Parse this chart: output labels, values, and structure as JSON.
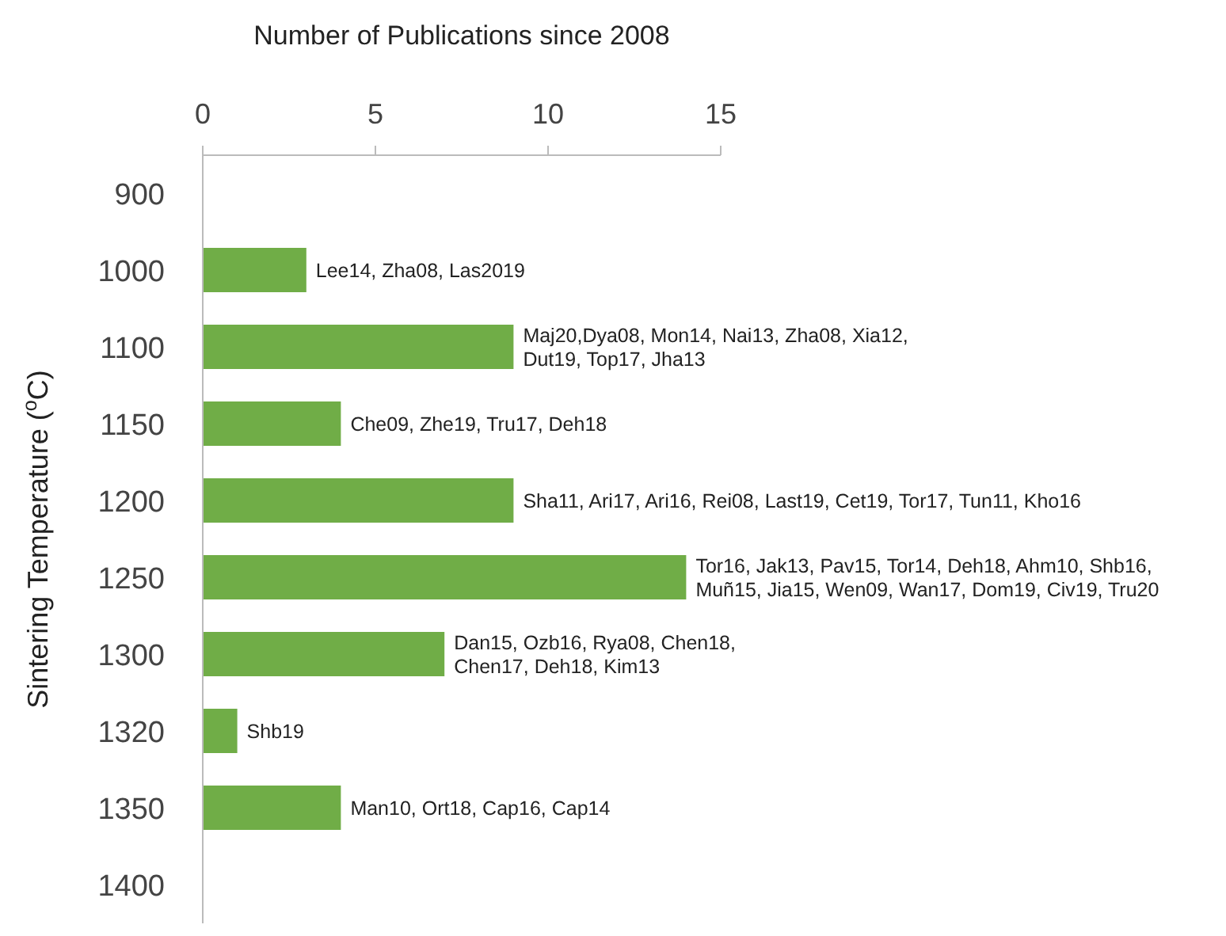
{
  "chart_data": {
    "type": "bar",
    "orientation": "horizontal",
    "xlabel": "Number of Publications since 2008",
    "ylabel": "Sintering Temperature ($^{o}$C)",
    "categories": [
      "900",
      "1000",
      "1100",
      "1150",
      "1200",
      "1250",
      "1300",
      "1320",
      "1350",
      "1400"
    ],
    "values": [
      0,
      3,
      9,
      4,
      9,
      14,
      7,
      1,
      4,
      0
    ],
    "color": "#70ad47",
    "xlim": [
      0,
      15
    ],
    "xticks": [
      0,
      5,
      10,
      15
    ],
    "annotations": [
      {
        "text": "Lee14, Zha08, Las2019",
        "x": 3,
        "y": "1000"
      },
      {
        "text": "Maj20,Dya08, Mon14, Nai13, Zha08, Xia12,\nDut19, Top17, Jha13",
        "x": 9,
        "y": "1100"
      },
      {
        "text": "Che09, Zhe19, Tru17, Deh18",
        "x": 4,
        "y": "1150"
      },
      {
        "text": "Sha11, Ari17, Ari16, Rei08, Last19, Cet19, Tor17, Tun11, Kho16",
        "x": 9,
        "y": "1200"
      },
      {
        "text": "Tor16, Jak13, Pav15, Tor14, Deh18, Ahm10, Shb16,\nMuñ15, Jia15, Wen09, Wan17, Dom19, Civ19, Tru20",
        "x": 14,
        "y": "1250"
      },
      {
        "text": "Dan15, Ozb16, Rya08, Chen18,\nChen17, Deh18, Kim13",
        "x": 7,
        "y": "1300"
      },
      {
        "text": "Shb19",
        "x": 1,
        "y": "1320"
      },
      {
        "text": "Man10, Ort18, Cap16, Cap14",
        "x": 4,
        "y": "1350"
      }
    ]
  }
}
